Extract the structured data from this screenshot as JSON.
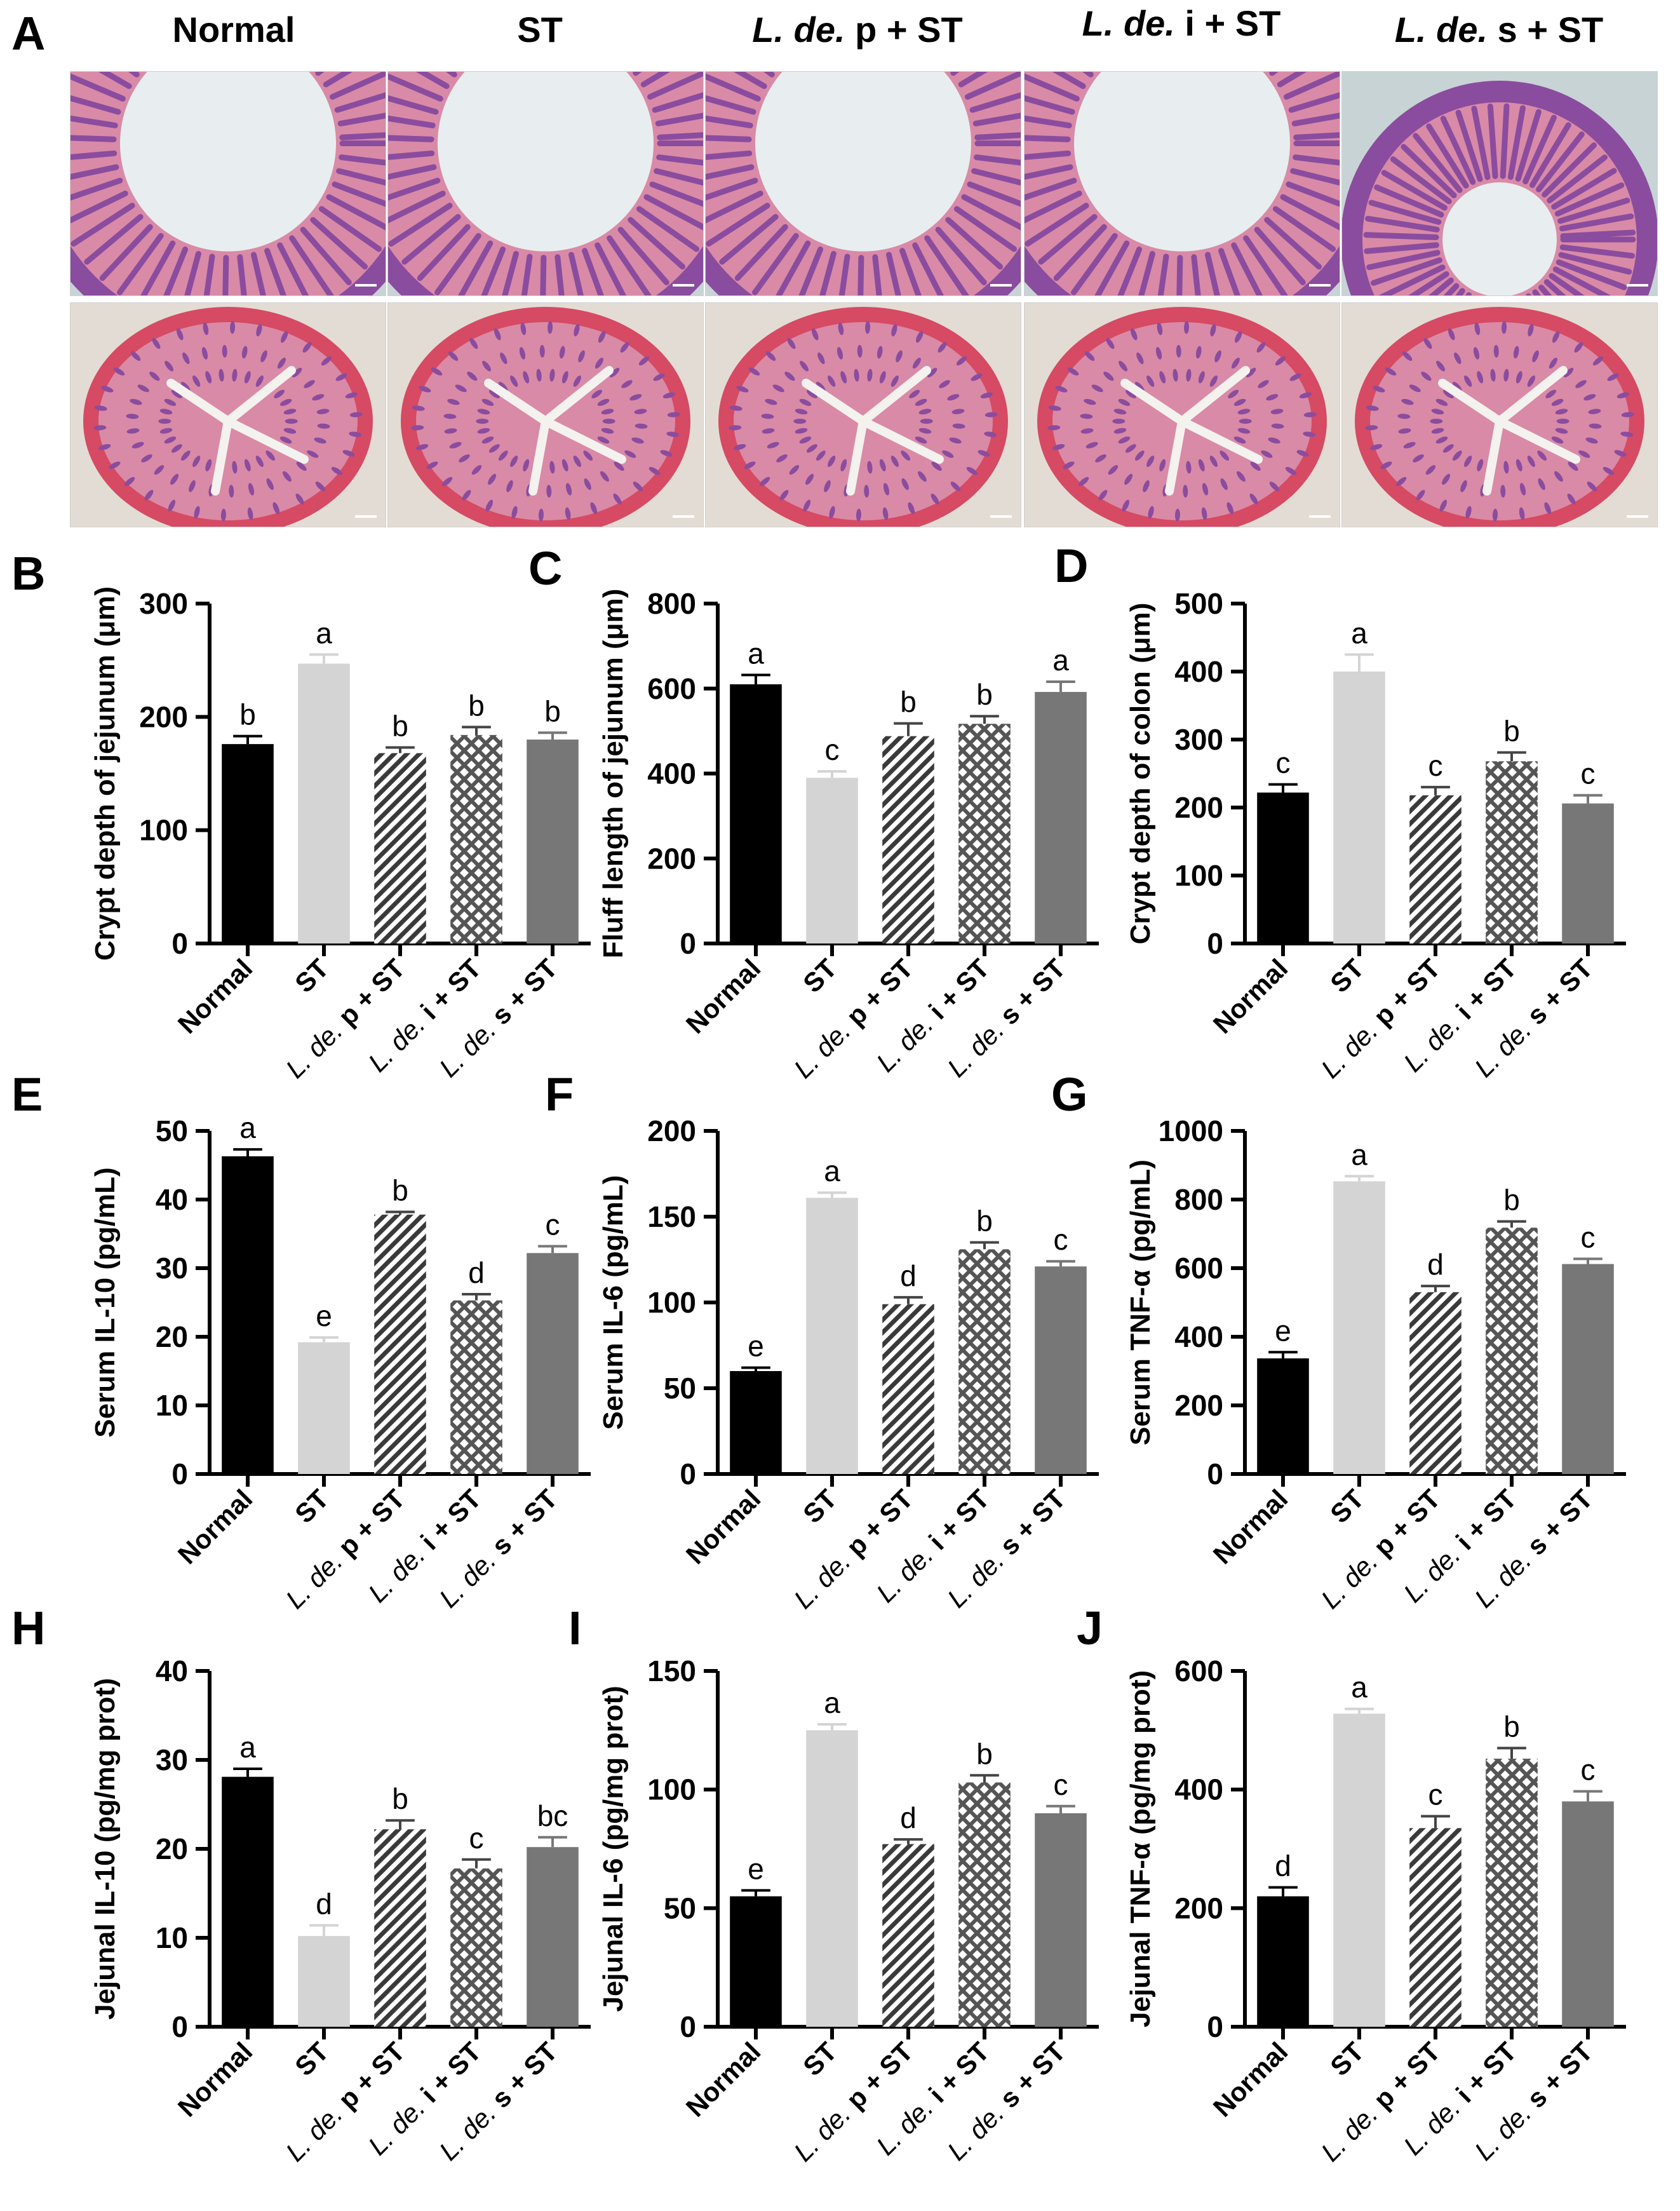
{
  "figure": {
    "panel_a_label": "A",
    "columns": [
      {
        "key": "normal",
        "italic": "",
        "rest": "Normal"
      },
      {
        "key": "st",
        "italic": "",
        "rest": "ST"
      },
      {
        "key": "ldep",
        "italic": "L. de.",
        "rest": " p + ST"
      },
      {
        "key": "ldei",
        "italic": "L. de.",
        "rest": " i + ST"
      },
      {
        "key": "ldes",
        "italic": "L. de.",
        "rest": " s + ST"
      }
    ],
    "micrograph_rows": [
      "jejunum",
      "colon"
    ]
  },
  "colors": {
    "normal": "#000000",
    "st": "#d4d4d4",
    "hatch": "#3a3a3a",
    "mesh": "#555555",
    "ldes": "#777777",
    "tissue_pink": "#d98aa6",
    "tissue_purple": "#8a4c9e",
    "muscle_red": "#d64a63",
    "bg_slide_j": "#c8d3d6",
    "bg_slide_c": "#e3dcd4"
  },
  "chart_data": [
    {
      "id": "B",
      "type": "bar",
      "ylabel": "Crypt depth of jejunum (μm)",
      "ylim": [
        0,
        300
      ],
      "yticks": [
        0,
        100,
        200,
        300
      ],
      "categories": [
        "Normal",
        "ST",
        "L. de. p + ST",
        "L. de. i + ST",
        "L. de. s + ST"
      ],
      "values": [
        176,
        247,
        168,
        184,
        180
      ],
      "errors": [
        7,
        8,
        5,
        7,
        6
      ],
      "letters": [
        "b",
        "a",
        "b",
        "b",
        "b"
      ]
    },
    {
      "id": "C",
      "type": "bar",
      "ylabel": "Fluff length of jejunum (μm)",
      "ylim": [
        0,
        800
      ],
      "yticks": [
        0,
        200,
        400,
        600,
        800
      ],
      "categories": [
        "Normal",
        "ST",
        "L. de. p + ST",
        "L. de. i + ST",
        "L. de. s + ST"
      ],
      "values": [
        610,
        390,
        488,
        517,
        592
      ],
      "errors": [
        22,
        15,
        30,
        18,
        24
      ],
      "letters": [
        "a",
        "c",
        "b",
        "b",
        "a"
      ]
    },
    {
      "id": "D",
      "type": "bar",
      "ylabel": "Crypt depth of colon (μm)",
      "ylim": [
        0,
        500
      ],
      "yticks": [
        0,
        100,
        200,
        300,
        400,
        500
      ],
      "categories": [
        "Normal",
        "ST",
        "L. de. p + ST",
        "L. de. i + ST",
        "L. de. s + ST"
      ],
      "values": [
        222,
        400,
        218,
        268,
        206
      ],
      "errors": [
        12,
        25,
        12,
        13,
        12
      ],
      "letters": [
        "c",
        "a",
        "c",
        "b",
        "c"
      ]
    },
    {
      "id": "E",
      "type": "bar",
      "ylabel": "Serum IL-10 (pg/mL)",
      "ylim": [
        0,
        50
      ],
      "yticks": [
        0,
        10,
        20,
        30,
        40,
        50
      ],
      "categories": [
        "Normal",
        "ST",
        "L. de. p + ST",
        "L. de. i + ST",
        "L. de. s + ST"
      ],
      "values": [
        46.3,
        19.2,
        37.8,
        25.3,
        32.2
      ],
      "errors": [
        1.0,
        0.7,
        0.4,
        0.9,
        1.0
      ],
      "letters": [
        "a",
        "e",
        "b",
        "d",
        "c"
      ]
    },
    {
      "id": "F",
      "type": "bar",
      "ylabel": "Serum IL-6 (pg/mL)",
      "ylim": [
        0,
        200
      ],
      "yticks": [
        0,
        50,
        100,
        150,
        200
      ],
      "categories": [
        "Normal",
        "ST",
        "L. de. p + ST",
        "L. de. i + ST",
        "L. de. s + ST"
      ],
      "values": [
        60,
        161,
        99,
        131,
        121
      ],
      "errors": [
        2,
        3,
        4,
        4,
        3
      ],
      "letters": [
        "e",
        "a",
        "d",
        "b",
        "c"
      ]
    },
    {
      "id": "G",
      "type": "bar",
      "ylabel": "Serum TNF-α (pg/mL)",
      "ylim": [
        0,
        1000
      ],
      "yticks": [
        0,
        200,
        400,
        600,
        800,
        1000
      ],
      "categories": [
        "Normal",
        "ST",
        "L. de. p + ST",
        "L. de. i + ST",
        "L. de. s + ST"
      ],
      "values": [
        337,
        853,
        530,
        718,
        612
      ],
      "errors": [
        18,
        15,
        18,
        18,
        15
      ],
      "letters": [
        "e",
        "a",
        "d",
        "b",
        "c"
      ]
    },
    {
      "id": "H",
      "type": "bar",
      "ylabel": "Jejunal IL-10 (pg/mg prot)",
      "ylim": [
        0,
        40
      ],
      "yticks": [
        0,
        10,
        20,
        30,
        40
      ],
      "categories": [
        "Normal",
        "ST",
        "L. de. p + ST",
        "L. de. i + ST",
        "L. de. s + ST"
      ],
      "values": [
        28.1,
        10.2,
        22.2,
        17.8,
        20.2
      ],
      "errors": [
        0.9,
        1.2,
        1.0,
        1.0,
        1.1
      ],
      "letters": [
        "a",
        "d",
        "b",
        "c",
        "bc"
      ]
    },
    {
      "id": "I",
      "type": "bar",
      "ylabel": "Jejunal IL-6 (pg/mg prot)",
      "ylim": [
        0,
        150
      ],
      "yticks": [
        0,
        50,
        100,
        150
      ],
      "categories": [
        "Normal",
        "ST",
        "L. de. p + ST",
        "L. de. i + ST",
        "L. de. s + ST"
      ],
      "values": [
        55,
        125,
        77,
        103,
        90
      ],
      "errors": [
        2.5,
        2.5,
        2,
        3,
        3
      ],
      "letters": [
        "e",
        "a",
        "d",
        "b",
        "c"
      ]
    },
    {
      "id": "J",
      "type": "bar",
      "ylabel": "Jejunal TNF-α (pg/mg prot)",
      "ylim": [
        0,
        600
      ],
      "yticks": [
        0,
        200,
        400,
        600
      ],
      "categories": [
        "Normal",
        "ST",
        "L. de. p + ST",
        "L. de. i + ST",
        "L. de. s + ST"
      ],
      "values": [
        220,
        528,
        335,
        452,
        380
      ],
      "errors": [
        15,
        8,
        20,
        18,
        17
      ],
      "letters": [
        "d",
        "a",
        "c",
        "b",
        "c"
      ]
    }
  ]
}
